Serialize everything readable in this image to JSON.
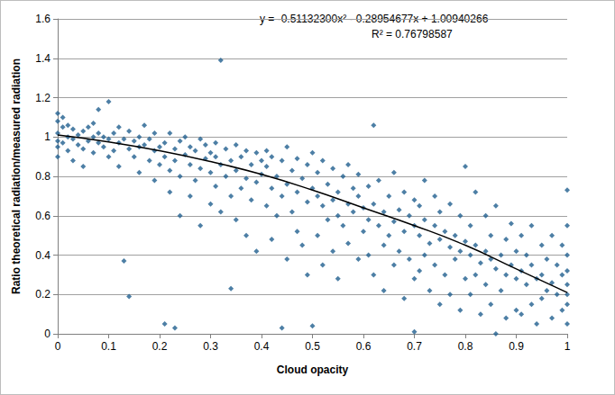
{
  "chart_data": {
    "type": "scatter",
    "x_label": "Cloud opacity",
    "y_label": "Ratio theoretical radiation/measured radiation",
    "annotations": [
      "y = -0.51132300x² - 0.28954677x + 1.00940266",
      "R² = 0.76798587"
    ],
    "xlim": [
      0,
      1
    ],
    "xticks": [
      0,
      0.1,
      0.2,
      0.3,
      0.4,
      0.5,
      0.6,
      0.7,
      0.8,
      0.9,
      1
    ],
    "ylim": [
      0,
      1.6
    ],
    "yticks": [
      0,
      0.2,
      0.4,
      0.6,
      0.8,
      1,
      1.2,
      1.4,
      1.6
    ],
    "grid": true,
    "series": [
      {
        "type": "scatter",
        "marker": "diamond",
        "color": "#215f8f",
        "x": [
          0,
          0,
          0,
          0,
          0,
          0,
          0.01,
          0.01,
          0.01,
          0.02,
          0.02,
          0.02,
          0.03,
          0.03,
          0.03,
          0.04,
          0.04,
          0.05,
          0.05,
          0.05,
          0.06,
          0.06,
          0.07,
          0.07,
          0.07,
          0.08,
          0.08,
          0.08,
          0.09,
          0.09,
          0.1,
          0.1,
          0.1,
          0.11,
          0.11,
          0.12,
          0.12,
          0.12,
          0.13,
          0.13,
          0.14,
          0.14,
          0.14,
          0.15,
          0.15,
          0.16,
          0.16,
          0.16,
          0.17,
          0.17,
          0.18,
          0.18,
          0.19,
          0.19,
          0.19,
          0.2,
          0.2,
          0.21,
          0.21,
          0.21,
          0.22,
          0.22,
          0.22,
          0.23,
          0.23,
          0.23,
          0.24,
          0.24,
          0.24,
          0.25,
          0.25,
          0.26,
          0.26,
          0.26,
          0.27,
          0.27,
          0.28,
          0.28,
          0.28,
          0.29,
          0.29,
          0.3,
          0.3,
          0.3,
          0.31,
          0.31,
          0.31,
          0.32,
          0.32,
          0.32,
          0.33,
          0.33,
          0.34,
          0.34,
          0.34,
          0.35,
          0.35,
          0.35,
          0.36,
          0.36,
          0.37,
          0.37,
          0.37,
          0.38,
          0.38,
          0.39,
          0.39,
          0.39,
          0.4,
          0.4,
          0.41,
          0.41,
          0.41,
          0.42,
          0.42,
          0.42,
          0.43,
          0.43,
          0.44,
          0.44,
          0.44,
          0.45,
          0.45,
          0.45,
          0.46,
          0.46,
          0.47,
          0.47,
          0.47,
          0.48,
          0.48,
          0.49,
          0.49,
          0.49,
          0.5,
          0.5,
          0.5,
          0.51,
          0.51,
          0.51,
          0.52,
          0.52,
          0.52,
          0.53,
          0.53,
          0.54,
          0.54,
          0.54,
          0.55,
          0.55,
          0.55,
          0.56,
          0.56,
          0.57,
          0.57,
          0.57,
          0.58,
          0.58,
          0.59,
          0.59,
          0.59,
          0.6,
          0.6,
          0.61,
          0.61,
          0.61,
          0.62,
          0.62,
          0.62,
          0.63,
          0.63,
          0.64,
          0.64,
          0.64,
          0.65,
          0.65,
          0.66,
          0.66,
          0.66,
          0.67,
          0.67,
          0.68,
          0.68,
          0.68,
          0.69,
          0.69,
          0.7,
          0.7,
          0.7,
          0.7,
          0.71,
          0.71,
          0.71,
          0.72,
          0.72,
          0.72,
          0.73,
          0.73,
          0.74,
          0.74,
          0.74,
          0.75,
          0.75,
          0.75,
          0.76,
          0.76,
          0.77,
          0.77,
          0.77,
          0.78,
          0.78,
          0.79,
          0.79,
          0.79,
          0.8,
          0.8,
          0.8,
          0.81,
          0.81,
          0.81,
          0.82,
          0.82,
          0.82,
          0.83,
          0.83,
          0.84,
          0.84,
          0.84,
          0.85,
          0.85,
          0.85,
          0.86,
          0.86,
          0.86,
          0.87,
          0.87,
          0.88,
          0.88,
          0.88,
          0.89,
          0.89,
          0.9,
          0.9,
          0.9,
          0.91,
          0.91,
          0.91,
          0.92,
          0.92,
          0.93,
          0.93,
          0.93,
          0.94,
          0.94,
          0.95,
          0.95,
          0.95,
          0.96,
          0.96,
          0.97,
          0.97,
          0.97,
          0.98,
          0.98,
          0.99,
          0.99,
          0.99,
          1,
          1,
          1,
          1,
          1,
          1,
          1,
          1
        ],
        "values": [
          1.02,
          1.08,
          0.95,
          1.12,
          0.9,
          0.98,
          1.05,
          0.97,
          1.1,
          1.0,
          0.93,
          1.06,
          0.99,
          1.04,
          0.88,
          1.01,
          0.96,
          1.03,
          0.94,
          0.85,
          0.98,
          1.05,
          1.0,
          0.92,
          1.07,
          0.97,
          1.02,
          1.14,
          0.95,
          1.0,
          1.18,
          0.99,
          0.9,
          1.02,
          0.93,
          0.97,
          0.85,
          1.05,
          0.37,
          0.99,
          0.19,
          0.94,
          1.03,
          0.9,
          0.98,
          1.0,
          0.82,
          0.95,
          0.96,
          1.06,
          0.88,
          0.99,
          0.93,
          1.02,
          0.78,
          0.95,
          0.86,
          0.05,
          0.97,
          0.9,
          0.83,
          1.02,
          0.72,
          0.03,
          0.94,
          0.88,
          0.98,
          0.8,
          0.6,
          0.91,
          1.0,
          0.86,
          0.7,
          0.95,
          0.93,
          0.78,
          0.99,
          0.84,
          0.55,
          0.89,
          0.96,
          0.82,
          0.92,
          0.66,
          0.9,
          0.75,
          0.97,
          1.39,
          0.86,
          0.62,
          0.94,
          0.8,
          0.23,
          0.88,
          0.7,
          0.83,
          0.96,
          0.58,
          0.9,
          0.74,
          0.79,
          0.93,
          0.5,
          0.86,
          0.68,
          0.92,
          0.77,
          0.42,
          0.81,
          0.88,
          0.85,
          0.65,
          0.93,
          0.74,
          0.9,
          0.48,
          0.8,
          0.6,
          0.03,
          0.88,
          0.7,
          0.76,
          0.95,
          0.38,
          0.83,
          0.62,
          0.72,
          0.89,
          0.52,
          0.79,
          0.45,
          0.86,
          0.67,
          0.3,
          0.74,
          0.92,
          0.04,
          0.7,
          0.82,
          0.5,
          0.65,
          0.88,
          0.35,
          0.76,
          0.58,
          0.68,
          0.84,
          0.42,
          0.72,
          0.6,
          0.28,
          0.8,
          0.55,
          0.66,
          0.86,
          0.46,
          0.62,
          0.74,
          0.7,
          0.38,
          0.81,
          0.64,
          0.52,
          0.58,
          0.75,
          0.4,
          1.06,
          0.66,
          0.3,
          0.55,
          0.78,
          0.62,
          0.45,
          0.22,
          0.7,
          0.5,
          0.57,
          0.82,
          0.35,
          0.63,
          0.42,
          0.52,
          0.72,
          0.18,
          0.6,
          0.38,
          0.01,
          0.55,
          0.68,
          0.28,
          0.5,
          0.65,
          0.32,
          0.58,
          0.4,
          0.78,
          0.46,
          0.22,
          0.55,
          0.7,
          0.35,
          0.48,
          0.15,
          0.62,
          0.52,
          0.3,
          0.44,
          0.66,
          0.2,
          0.5,
          0.38,
          0.42,
          0.6,
          0.12,
          0.47,
          0.85,
          0.28,
          0.4,
          0.55,
          0.2,
          0.45,
          0.3,
          0.72,
          0.36,
          0.1,
          0.42,
          0.6,
          0.25,
          0.38,
          0.15,
          0.5,
          0.0,
          0.33,
          0.65,
          0.4,
          0.22,
          0.3,
          0.48,
          0.08,
          0.35,
          0.56,
          0.28,
          0.42,
          0.12,
          0.32,
          0.5,
          0.1,
          0.25,
          0.4,
          0.35,
          0.15,
          0.55,
          0.28,
          0.05,
          0.3,
          0.45,
          0.18,
          0.22,
          0.38,
          0.26,
          0.5,
          0.08,
          0.2,
          0.35,
          0.3,
          0.12,
          0.45,
          0.73,
          0.25,
          0.15,
          0.05,
          0.4,
          0.32,
          0.2,
          0.55
        ]
      },
      {
        "type": "line",
        "line_style": "solid",
        "color": "#000000",
        "x": [
          0,
          0.1,
          0.2,
          0.3,
          0.4,
          0.5,
          0.6,
          0.7,
          0.8,
          0.9,
          1
        ],
        "values": [
          1.01,
          0.975,
          0.93,
          0.875,
          0.81,
          0.73,
          0.64,
          0.55,
          0.45,
          0.33,
          0.21
        ]
      }
    ]
  }
}
